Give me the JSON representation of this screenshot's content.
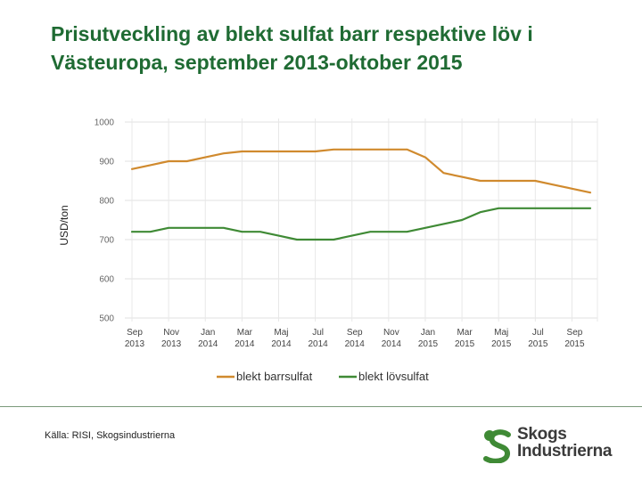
{
  "title": {
    "line1": "Prisutveckling av blekt sulfat barr respektive löv i",
    "line2": "Västeuropa, september 2013-oktober 2015"
  },
  "chart_data": {
    "type": "line",
    "title": "Prisutveckling av blekt sulfat barr respektive löv i Västeuropa, september 2013-oktober 2015",
    "ylabel": "USD/ton",
    "xlabel": "",
    "ylim": [
      500,
      1000
    ],
    "yticks": [
      "1000",
      "900",
      "800",
      "700",
      "600",
      "500"
    ],
    "xtick_labels": [
      [
        "Sep",
        "2013"
      ],
      [
        "Nov",
        "2013"
      ],
      [
        "Jan",
        "2014"
      ],
      [
        "Mar",
        "2014"
      ],
      [
        "Maj",
        "2014"
      ],
      [
        "Jul",
        "2014"
      ],
      [
        "Sep",
        "2014"
      ],
      [
        "Nov",
        "2014"
      ],
      [
        "Jan",
        "2015"
      ],
      [
        "Mar",
        "2015"
      ],
      [
        "Maj",
        "2015"
      ],
      [
        "Jul",
        "2015"
      ],
      [
        "Sep",
        "2015"
      ]
    ],
    "x_count": 26,
    "grid": true,
    "legend_position": "bottom",
    "series": [
      {
        "name": "blekt barrsulfat",
        "color": "#d08a2e",
        "values": [
          880,
          890,
          900,
          900,
          910,
          920,
          925,
          925,
          925,
          925,
          925,
          930,
          930,
          930,
          930,
          930,
          910,
          870,
          860,
          850,
          850,
          850,
          850,
          840,
          830,
          820
        ]
      },
      {
        "name": "blekt lövsulfat",
        "color": "#3f8a35",
        "values": [
          720,
          720,
          730,
          730,
          730,
          730,
          720,
          720,
          710,
          700,
          700,
          700,
          710,
          720,
          720,
          720,
          730,
          740,
          750,
          770,
          780,
          780,
          780,
          780,
          780,
          780
        ]
      }
    ]
  },
  "footer": {
    "source": "Källa: RISI, Skogsindustrierna",
    "logo_line1": "Skogs",
    "logo_line2": "Industrierna",
    "logo_color": "#3f8a35"
  }
}
